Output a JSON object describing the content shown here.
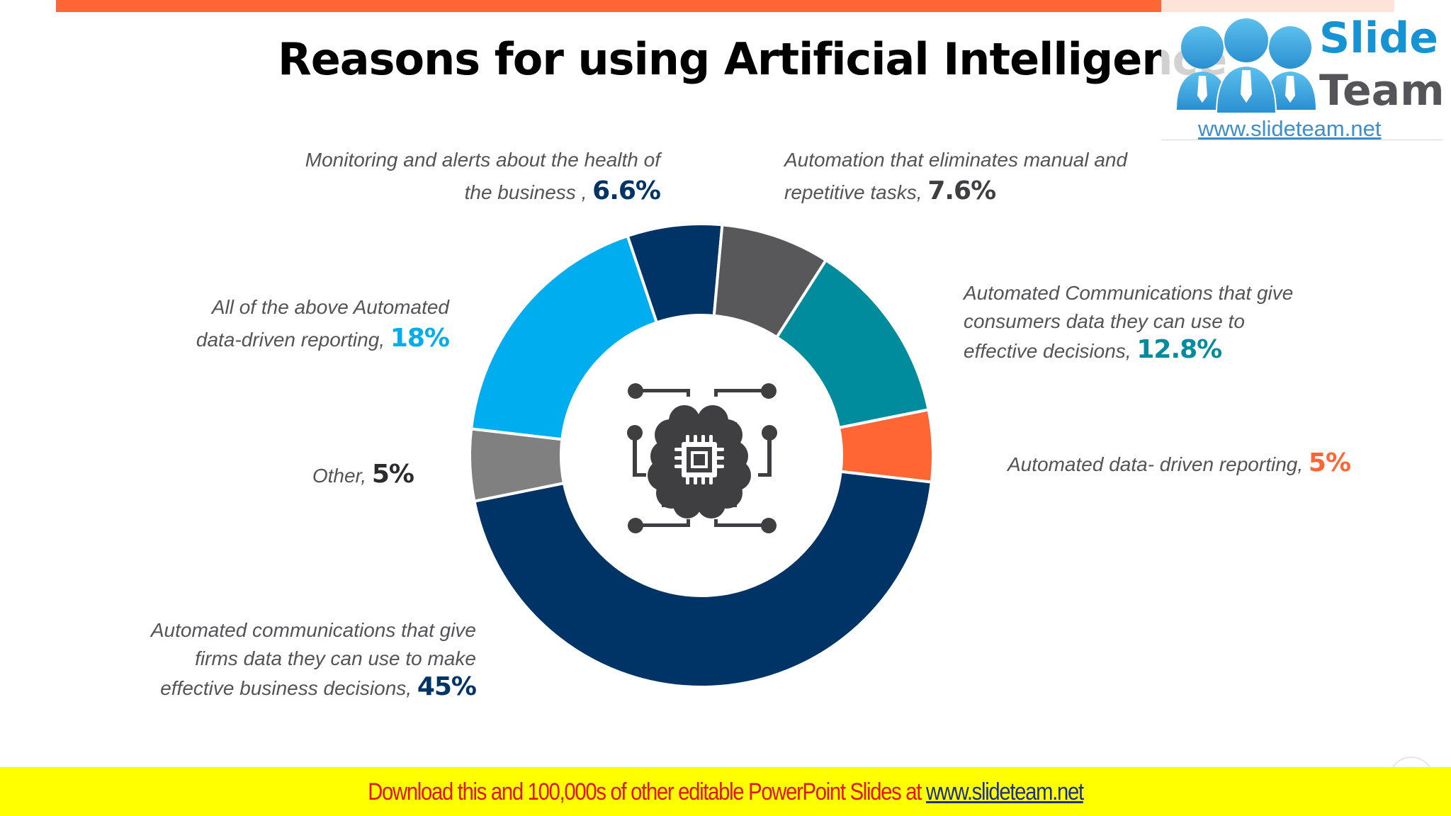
{
  "header": {
    "title": "Reasons for using Artificial Intelligence",
    "accent_bar_color": "#FF6633"
  },
  "logo": {
    "brand_top": "Slide",
    "brand_bottom": "Team",
    "url": "www.slideteam.net",
    "icon": "people-group-icon"
  },
  "center_icon": "ai-brain-chip-icon",
  "labels": [
    {
      "text_lines": [
        "Monitoring and alerts about the health of",
        "the business ,"
      ],
      "pct": "6.6%",
      "color": "#003366"
    },
    {
      "text_lines": [
        "Automation that eliminates manual and",
        "repetitive tasks,"
      ],
      "pct": "7.6%",
      "color": "#3F3F42"
    },
    {
      "text_lines": [
        "Automated Communications that give",
        "consumers data they can use to",
        "effective decisions,"
      ],
      "pct": "12.8%",
      "color": "#008C9C"
    },
    {
      "text_lines": [
        "Automated data- driven reporting,"
      ],
      "pct": "5%",
      "color": "#FF6633"
    },
    {
      "text_lines": [
        "Automated communications that give",
        "firms data they can use to make",
        "effective business decisions,"
      ],
      "pct": "45%",
      "color": "#003366"
    },
    {
      "text_lines": [
        "Other,"
      ],
      "pct": "5%",
      "color": "#2B2B2E"
    },
    {
      "text_lines": [
        "All of the above Automated",
        "data-driven reporting,"
      ],
      "pct": "18%",
      "color": "#00AEEF"
    }
  ],
  "footer": {
    "text": "Download this and 100,000s of other editable PowerPoint Slides at ",
    "link": "www.slideteam.net"
  },
  "chart_data": {
    "type": "pie",
    "subtype": "donut",
    "title": "Reasons for using Artificial Intelligence",
    "categories": [
      "Monitoring and alerts about the health of the business",
      "Automation that eliminates manual and repetitive tasks",
      "Automated Communications that give consumers data they can use to effective decisions",
      "Automated data- driven reporting",
      "Automated communications that give firms data they can use to make effective business decisions",
      "Other",
      "All of the above Automated data-driven reporting"
    ],
    "values": [
      6.6,
      7.6,
      12.8,
      5,
      45,
      5,
      18
    ],
    "unit": "%",
    "colors": [
      "#003366",
      "#58585B",
      "#008C9C",
      "#FF6633",
      "#003366",
      "#808080",
      "#00AEEF"
    ],
    "start_angle_deg": -18.6,
    "direction": "clockwise",
    "center": [
      990,
      643
    ],
    "outer_radius": 327,
    "inner_radius": 198,
    "legend": "none (direct labels)"
  }
}
